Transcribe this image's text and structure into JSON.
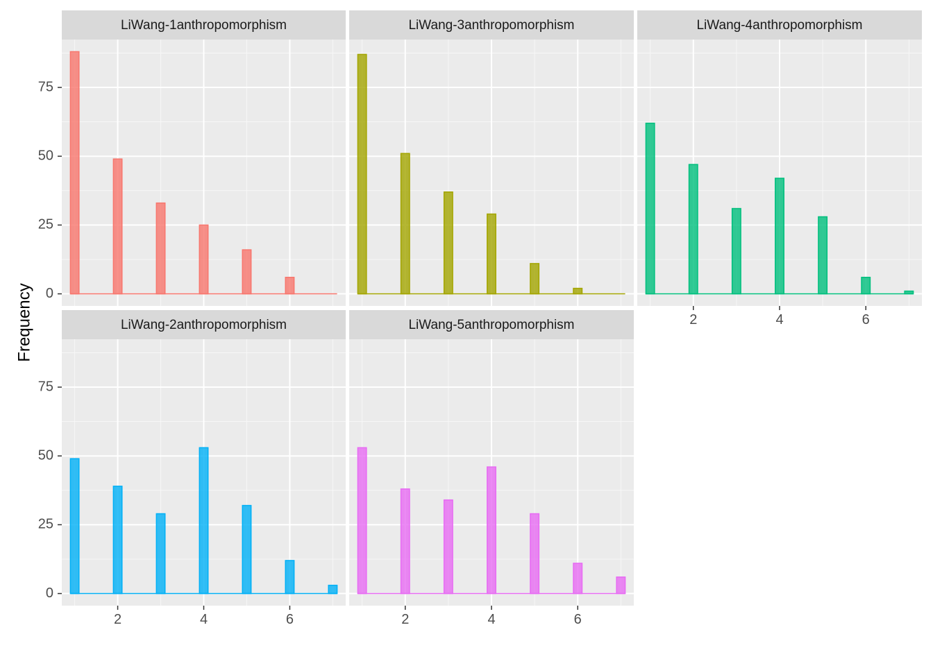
{
  "chart_data": {
    "type": "bar",
    "ylabel": "Frequency",
    "xlabel": "",
    "xlim": [
      0.7,
      7.3
    ],
    "ylim": [
      -4.4,
      92.4
    ],
    "x_ticks": [
      2,
      4,
      6
    ],
    "y_ticks": [
      0,
      25,
      50,
      75
    ],
    "grid": true,
    "legend": "none",
    "x": [
      1,
      2,
      3,
      4,
      5,
      6,
      7
    ],
    "panels": [
      {
        "name": "LiWang-1anthropomorphism",
        "color": "#F8766D",
        "values": [
          88,
          49,
          33,
          25,
          16,
          6,
          0
        ]
      },
      {
        "name": "LiWang-3anthropomorphism",
        "color": "#A3A500",
        "values": [
          87,
          51,
          37,
          29,
          11,
          2,
          0
        ]
      },
      {
        "name": "LiWang-4anthropomorphism",
        "color": "#00BF7D",
        "values": [
          62,
          47,
          31,
          42,
          28,
          6,
          1
        ]
      },
      {
        "name": "LiWang-2anthropomorphism",
        "color": "#00B0F6",
        "values": [
          49,
          39,
          29,
          53,
          32,
          12,
          3
        ]
      },
      {
        "name": "LiWang-5anthropomorphism",
        "color": "#E76BF3",
        "values": [
          53,
          38,
          34,
          46,
          29,
          11,
          6
        ]
      }
    ]
  }
}
